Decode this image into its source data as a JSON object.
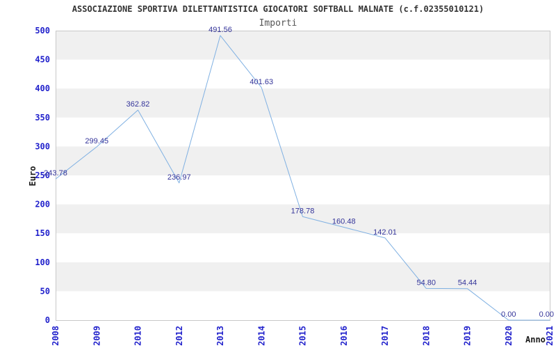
{
  "chart_data": {
    "type": "line",
    "title": "ASSOCIAZIONE SPORTIVA DILETTANTISTICA GIOCATORI SOFTBALL MALNATE (c.f.02355010121)",
    "subtitle": "Importi",
    "xlabel": "Anno",
    "ylabel": "Euro",
    "categories": [
      "2008",
      "2009",
      "2010",
      "2012",
      "2013",
      "2014",
      "2015",
      "2016",
      "2017",
      "2018",
      "2019",
      "2020",
      "2021"
    ],
    "values": [
      243.78,
      299.45,
      362.82,
      236.97,
      491.56,
      401.63,
      178.78,
      160.48,
      142.01,
      54.8,
      54.44,
      0.0,
      0.0
    ],
    "point_labels": [
      "243.78",
      "299.45",
      "362.82",
      "236.97",
      "491.56",
      "401.63",
      "178.78",
      "160.48",
      "142.01",
      "54.80",
      "54.44",
      "0.00",
      "0.00"
    ],
    "ylim": [
      0,
      500
    ],
    "yticks": [
      0,
      50,
      100,
      150,
      200,
      250,
      300,
      350,
      400,
      450,
      500
    ],
    "grid": "alternating horizontal bands, no vertical gridlines",
    "legend": "none",
    "series_name": "Importi"
  },
  "colors": {
    "line": "#7fb0e2",
    "tick_label": "#2222cc",
    "point_label": "#333399",
    "band": "#f0f0f0",
    "plot_border": "#c8c8c8",
    "title": "#333333",
    "subtitle": "#555555",
    "axis_title": "#1a1a1a",
    "background": "#ffffff"
  }
}
